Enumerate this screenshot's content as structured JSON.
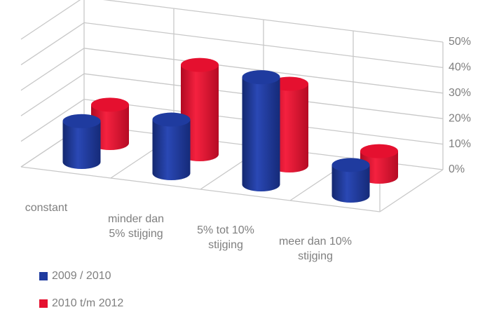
{
  "chart_data": {
    "type": "bar3d",
    "categories": [
      "constant",
      "minder dan\n5% stijging",
      "5% tot 10%\nstijging",
      "meer dan 10%\nstijging"
    ],
    "series": [
      {
        "name": "2009 / 2010",
        "color": "#1f3b9f",
        "values": [
          16,
          21,
          42,
          12
        ]
      },
      {
        "name": "2010 t/m 2012",
        "color": "#e5102f",
        "values": [
          15,
          35,
          32,
          10
        ]
      }
    ],
    "ylim": [
      0,
      50
    ],
    "yticks": [
      {
        "value": 0,
        "label": "0%"
      },
      {
        "value": 10,
        "label": "10%"
      },
      {
        "value": 20,
        "label": "20%"
      },
      {
        "value": 30,
        "label": "30%"
      },
      {
        "value": 40,
        "label": "40%"
      },
      {
        "value": 50,
        "label": "50%"
      }
    ],
    "grid": true,
    "legend": "bottom-left"
  }
}
